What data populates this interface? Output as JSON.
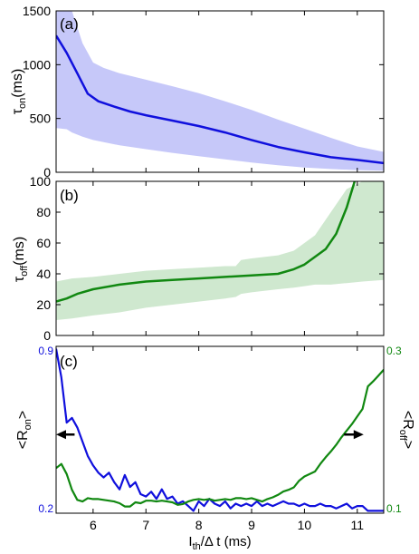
{
  "colors": {
    "blue": "#1010dd",
    "blue_band": "#c6c8f9",
    "green": "#118811",
    "green_band": "#cfe8cf",
    "axis": "#000000"
  },
  "chart_data": [
    {
      "id": "a",
      "type": "line",
      "panel_label": "(a)",
      "ylabel_main": "τ",
      "ylabel_sub": "on",
      "ylabel_unit": "(ms)",
      "xlim": [
        5.3,
        11.5
      ],
      "ylim": [
        0,
        1500
      ],
      "yticks": [
        0,
        500,
        1000,
        1500
      ],
      "ytick_labels": [
        "0",
        "500",
        "1000",
        "1500"
      ],
      "grid": false,
      "series": [
        {
          "kind": "band",
          "color": "#c6c8f9",
          "x": [
            5.3,
            5.5,
            5.6,
            5.8,
            6.0,
            6.2,
            6.5,
            7.0,
            7.5,
            8.0,
            8.5,
            9.0,
            9.5,
            10.0,
            10.5,
            11.0,
            11.5
          ],
          "upper": [
            1500,
            1500,
            1500,
            1200,
            1020,
            970,
            920,
            860,
            800,
            735,
            660,
            580,
            490,
            405,
            320,
            240,
            190
          ],
          "lower": [
            410,
            400,
            370,
            330,
            300,
            280,
            250,
            215,
            180,
            150,
            120,
            90,
            65,
            45,
            30,
            20,
            15
          ]
        },
        {
          "kind": "line",
          "color": "#1010dd",
          "x": [
            5.3,
            5.5,
            5.7,
            5.9,
            6.1,
            6.4,
            6.7,
            7.0,
            7.5,
            8.0,
            8.5,
            9.0,
            9.5,
            10.0,
            10.5,
            11.0,
            11.5
          ],
          "y": [
            1270,
            1110,
            920,
            730,
            660,
            610,
            565,
            530,
            480,
            430,
            370,
            300,
            235,
            185,
            140,
            115,
            85
          ]
        }
      ]
    },
    {
      "id": "b",
      "type": "line",
      "panel_label": "(b)",
      "ylabel_main": "τ",
      "ylabel_sub": "off",
      "ylabel_unit": "(ms)",
      "xlim": [
        5.3,
        11.5
      ],
      "ylim": [
        0,
        100
      ],
      "yticks": [
        0,
        20,
        40,
        60,
        80,
        100
      ],
      "ytick_labels": [
        "0",
        "20",
        "40",
        "60",
        "80",
        "100"
      ],
      "grid": false,
      "series": [
        {
          "kind": "band",
          "color": "#cfe8cf",
          "x": [
            5.3,
            5.6,
            6.0,
            6.5,
            7.0,
            7.5,
            8.0,
            8.5,
            8.7,
            8.8,
            9.0,
            9.5,
            9.8,
            10.0,
            10.2,
            10.5,
            10.8,
            11.1,
            11.5
          ],
          "upper": [
            35,
            37,
            38,
            40,
            42,
            43,
            44,
            45,
            45,
            49,
            50,
            52,
            55,
            60,
            65,
            80,
            95,
            100,
            100
          ],
          "lower": [
            10,
            11,
            13,
            15,
            18,
            20,
            22,
            24,
            25,
            27,
            28,
            30,
            31,
            32,
            33,
            33,
            34,
            35,
            36
          ]
        },
        {
          "kind": "line",
          "color": "#118811",
          "x": [
            5.3,
            5.5,
            5.7,
            6.0,
            6.5,
            7.0,
            7.5,
            8.0,
            8.5,
            9.0,
            9.5,
            9.8,
            10.0,
            10.2,
            10.4,
            10.6,
            10.8,
            10.95
          ],
          "y": [
            22,
            24,
            27,
            30,
            33,
            35,
            36,
            37,
            38,
            39,
            40,
            43,
            46,
            51,
            56,
            66,
            83,
            100
          ]
        }
      ]
    },
    {
      "id": "c",
      "type": "line",
      "panel_label": "(c)",
      "ylabel_left_main": "<R",
      "ylabel_left_sub": "on",
      "ylabel_left_close": ">",
      "ylabel_right_main": "<R",
      "ylabel_right_sub": "off",
      "ylabel_right_close": ">",
      "xlabel_main": "I",
      "xlabel_sub": "th",
      "xlabel_rest": "/Δ t (ms)",
      "xlim": [
        5.3,
        11.5
      ],
      "xticks": [
        6,
        7,
        8,
        9,
        10,
        11
      ],
      "xtick_labels": [
        "6",
        "7",
        "8",
        "9",
        "10",
        "11"
      ],
      "ylim_left": [
        0.2,
        0.9
      ],
      "yticks_left": [
        0.2,
        0.9
      ],
      "ytick_labels_left": [
        "0.2",
        "0.9"
      ],
      "ylim_right": [
        0.1,
        0.3
      ],
      "yticks_right": [
        0.1,
        0.3
      ],
      "ytick_labels_right": [
        "0.1",
        "0.3"
      ],
      "grid": false,
      "series": [
        {
          "kind": "line",
          "axis": "left",
          "color": "#1010dd",
          "x": [
            5.3,
            5.4,
            5.5,
            5.6,
            5.7,
            5.8,
            5.9,
            6.0,
            6.1,
            6.2,
            6.3,
            6.4,
            6.5,
            6.6,
            6.7,
            6.8,
            6.9,
            7.0,
            7.1,
            7.2,
            7.3,
            7.4,
            7.5,
            7.6,
            7.7,
            7.8,
            7.9,
            8.0,
            8.1,
            8.2,
            8.3,
            8.4,
            8.5,
            8.6,
            8.7,
            8.8,
            8.9,
            9.0,
            9.1,
            9.2,
            9.3,
            9.4,
            9.5,
            9.6,
            9.7,
            9.8,
            9.9,
            10.0,
            10.1,
            10.2,
            10.3,
            10.4,
            10.5,
            10.6,
            10.7,
            10.8,
            10.9,
            11.0,
            11.1,
            11.2,
            11.3,
            11.4,
            11.5
          ],
          "y": [
            0.89,
            0.77,
            0.58,
            0.6,
            0.56,
            0.5,
            0.44,
            0.4,
            0.37,
            0.35,
            0.37,
            0.33,
            0.3,
            0.36,
            0.31,
            0.33,
            0.28,
            0.27,
            0.29,
            0.26,
            0.3,
            0.26,
            0.27,
            0.24,
            0.25,
            0.23,
            0.21,
            0.25,
            0.23,
            0.26,
            0.24,
            0.23,
            0.25,
            0.22,
            0.24,
            0.23,
            0.24,
            0.23,
            0.25,
            0.23,
            0.24,
            0.23,
            0.24,
            0.25,
            0.24,
            0.24,
            0.23,
            0.24,
            0.23,
            0.23,
            0.24,
            0.23,
            0.23,
            0.22,
            0.23,
            0.24,
            0.22,
            0.23,
            0.23,
            0.21,
            0.21,
            0.21,
            0.21
          ]
        },
        {
          "kind": "line",
          "axis": "right",
          "color": "#118811",
          "x": [
            5.3,
            5.4,
            5.5,
            5.6,
            5.7,
            5.8,
            5.9,
            6.0,
            6.1,
            6.2,
            6.3,
            6.4,
            6.5,
            6.6,
            6.7,
            6.8,
            6.9,
            7.0,
            7.1,
            7.2,
            7.3,
            7.4,
            7.5,
            7.6,
            7.7,
            7.8,
            7.9,
            8.0,
            8.1,
            8.2,
            8.3,
            8.4,
            8.5,
            8.6,
            8.7,
            8.8,
            8.9,
            9.0,
            9.1,
            9.2,
            9.3,
            9.4,
            9.5,
            9.6,
            9.7,
            9.8,
            9.9,
            10.0,
            10.1,
            10.2,
            10.3,
            10.4,
            10.5,
            10.6,
            10.7,
            10.8,
            10.9,
            11.0,
            11.1,
            11.2,
            11.3,
            11.4,
            11.5
          ],
          "y": [
            0.154,
            0.159,
            0.147,
            0.128,
            0.116,
            0.114,
            0.118,
            0.117,
            0.117,
            0.116,
            0.115,
            0.114,
            0.112,
            0.108,
            0.108,
            0.113,
            0.112,
            0.115,
            0.115,
            0.114,
            0.115,
            0.114,
            0.113,
            0.11,
            0.111,
            0.114,
            0.116,
            0.117,
            0.116,
            0.117,
            0.115,
            0.116,
            0.117,
            0.116,
            0.118,
            0.118,
            0.117,
            0.118,
            0.116,
            0.114,
            0.117,
            0.119,
            0.122,
            0.126,
            0.128,
            0.131,
            0.139,
            0.144,
            0.147,
            0.15,
            0.159,
            0.167,
            0.174,
            0.182,
            0.191,
            0.199,
            0.207,
            0.216,
            0.225,
            0.252,
            0.258,
            0.265,
            0.272
          ]
        }
      ],
      "arrows": [
        {
          "direction": "left",
          "x_from": 5.65,
          "x_to": 5.3,
          "y_left": 0.53
        },
        {
          "direction": "right",
          "x_from": 10.75,
          "x_to": 11.12,
          "y_left": 0.53
        }
      ]
    }
  ]
}
